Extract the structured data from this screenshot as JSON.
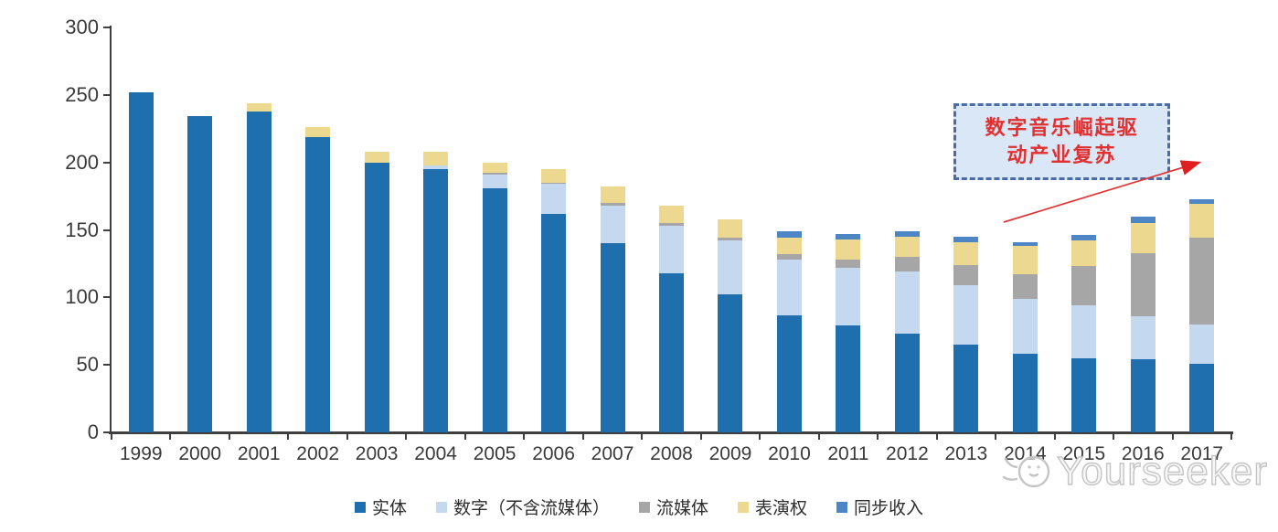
{
  "chart_data": {
    "type": "bar",
    "stacked": true,
    "title": "",
    "xlabel": "",
    "ylabel": "",
    "categories": [
      "1999",
      "2000",
      "2001",
      "2002",
      "2003",
      "2004",
      "2005",
      "2006",
      "2007",
      "2008",
      "2009",
      "2010",
      "2011",
      "2012",
      "2013",
      "2014",
      "2015",
      "2016",
      "2017"
    ],
    "series": [
      {
        "name": "实体",
        "color": "#1f6fae",
        "values": [
          252,
          234,
          238,
          219,
          200,
          195,
          181,
          162,
          140,
          118,
          102,
          87,
          79,
          73,
          65,
          58,
          55,
          54,
          51
        ]
      },
      {
        "name": "数字（不含流媒体）",
        "color": "#c4d9ef",
        "values": [
          0,
          0,
          0,
          0,
          0,
          3,
          10,
          22,
          28,
          35,
          40,
          41,
          43,
          46,
          44,
          41,
          39,
          32,
          29
        ]
      },
      {
        "name": "流媒体",
        "color": "#a6a6a6",
        "values": [
          0,
          0,
          0,
          0,
          0,
          0,
          1,
          1,
          2,
          2,
          2,
          4,
          6,
          11,
          15,
          18,
          29,
          47,
          64
        ]
      },
      {
        "name": "表演权",
        "color": "#edd88f",
        "values": [
          0,
          0,
          6,
          7,
          8,
          10,
          8,
          10,
          12,
          13,
          14,
          12,
          15,
          15,
          17,
          21,
          19,
          22,
          25
        ]
      },
      {
        "name": "同步收入",
        "color": "#4e86c5",
        "values": [
          0,
          0,
          0,
          0,
          0,
          0,
          0,
          0,
          0,
          0,
          0,
          5,
          4,
          4,
          4,
          3,
          4,
          5,
          4
        ]
      }
    ],
    "ylim": [
      0,
      300
    ],
    "yticks": [
      0,
      50,
      100,
      150,
      200,
      250,
      300
    ],
    "grid": false,
    "legend_position": "bottom"
  },
  "annotation": {
    "line1": "数字音乐崛起驱",
    "line2": "动产业复苏",
    "text_color": "#e03030",
    "border_color": "#4a6da7",
    "background_color": "#dae7f6",
    "arrow_color": "#e43333"
  },
  "watermark": {
    "text": "Yourseeker"
  }
}
